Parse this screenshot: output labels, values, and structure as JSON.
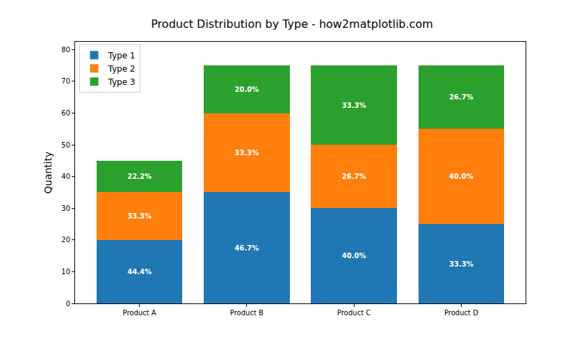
{
  "chart_data": {
    "type": "bar",
    "stacked": true,
    "title": "Product Distribution by Type - how2matplotlib.com",
    "y_label": "Quantity",
    "categories": [
      "Product A",
      "Product B",
      "Product C",
      "Product D"
    ],
    "series": [
      {
        "name": "Type 1",
        "color": "#1f77b4",
        "values": [
          20,
          35,
          30,
          25
        ],
        "percent_labels": [
          "44.4%",
          "46.7%",
          "40.0%",
          "33.3%"
        ]
      },
      {
        "name": "Type 2",
        "color": "#ff7f0e",
        "values": [
          15,
          25,
          20,
          30
        ],
        "percent_labels": [
          "33.3%",
          "33.3%",
          "26.7%",
          "40.0%"
        ]
      },
      {
        "name": "Type 3",
        "color": "#2ca02c",
        "values": [
          10,
          15,
          25,
          20
        ],
        "percent_labels": [
          "22.2%",
          "20.0%",
          "33.3%",
          "26.7%"
        ]
      }
    ],
    "ylim": [
      0,
      82.5
    ],
    "yticks": [
      0,
      10,
      20,
      30,
      40,
      50,
      60,
      70,
      80
    ],
    "grid": false,
    "legend": "upper left"
  }
}
